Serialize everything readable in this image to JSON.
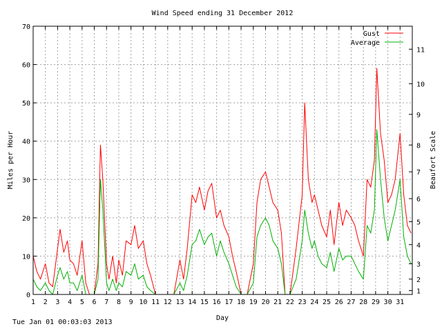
{
  "chart_data": {
    "type": "line",
    "title": "Wind Speed ending 31 December 2012",
    "xlabel": "Day",
    "ylabel": "Miles per Hour",
    "y2label": "Beaufort Scale",
    "xlim": [
      1,
      32
    ],
    "ylim": [
      0,
      70
    ],
    "x_ticks": [
      "1",
      "2",
      "3",
      "4",
      "5",
      "6",
      "7",
      "8",
      "9",
      "10",
      "11",
      "12",
      "13",
      "14",
      "15",
      "16",
      "17",
      "18",
      "19",
      "20",
      "21",
      "22",
      "23",
      "24",
      "25",
      "26",
      "27",
      "28",
      "29",
      "30",
      "31"
    ],
    "y_ticks": [
      0,
      10,
      20,
      30,
      40,
      50,
      60,
      70
    ],
    "y2_ticks": [
      {
        "label": "1",
        "mph": 1
      },
      {
        "label": "2",
        "mph": 4
      },
      {
        "label": "3",
        "mph": 8
      },
      {
        "label": "4",
        "mph": 13
      },
      {
        "label": "5",
        "mph": 19
      },
      {
        "label": "6",
        "mph": 25
      },
      {
        "label": "7",
        "mph": 32
      },
      {
        "label": "8",
        "mph": 39
      },
      {
        "label": "9",
        "mph": 47
      },
      {
        "label": "10",
        "mph": 55
      },
      {
        "label": "11",
        "mph": 64
      }
    ],
    "grid": true,
    "legend_position": "top-right",
    "series": [
      {
        "name": "Gust",
        "color": "#ff0000",
        "x": [
          1.0,
          1.3,
          1.6,
          2.0,
          2.3,
          2.6,
          3.0,
          3.2,
          3.5,
          3.8,
          4.0,
          4.3,
          4.6,
          5.0,
          5.3,
          5.6,
          6.0,
          6.3,
          6.5,
          6.7,
          7.0,
          7.2,
          7.5,
          7.8,
          8.0,
          8.3,
          8.6,
          9.0,
          9.3,
          9.6,
          10.0,
          10.3,
          10.6,
          11.0,
          11.5,
          12.0,
          12.5,
          13.0,
          13.3,
          13.6,
          14.0,
          14.3,
          14.6,
          15.0,
          15.3,
          15.6,
          16.0,
          16.3,
          16.6,
          17.0,
          17.3,
          17.6,
          18.0,
          18.5,
          19.0,
          19.3,
          19.6,
          20.0,
          20.3,
          20.6,
          21.0,
          21.3,
          21.6,
          22.0,
          22.5,
          23.0,
          23.2,
          23.5,
          23.8,
          24.0,
          24.3,
          24.6,
          25.0,
          25.3,
          25.6,
          26.0,
          26.3,
          26.6,
          27.0,
          27.3,
          27.6,
          28.0,
          28.3,
          28.6,
          28.9,
          29.1,
          29.4,
          29.7,
          30.0,
          30.3,
          30.6,
          31.0,
          31.3,
          31.6,
          31.9
        ],
        "values": [
          10,
          6,
          4,
          8,
          3,
          2,
          12,
          17,
          11,
          14,
          9,
          8,
          5,
          14,
          3,
          0,
          0,
          8,
          39,
          30,
          8,
          4,
          10,
          3,
          9,
          5,
          14,
          13,
          18,
          12,
          14,
          8,
          5,
          0,
          0,
          0,
          0,
          9,
          4,
          12,
          26,
          24,
          28,
          22,
          27,
          29,
          20,
          22,
          18,
          15,
          10,
          6,
          0,
          0,
          8,
          24,
          30,
          32,
          28,
          24,
          22,
          16,
          0,
          0,
          12,
          26,
          50,
          30,
          24,
          26,
          22,
          18,
          15,
          22,
          13,
          24,
          18,
          22,
          20,
          18,
          14,
          10,
          30,
          28,
          35,
          59,
          42,
          35,
          24,
          26,
          30,
          42,
          26,
          18,
          16
        ]
      },
      {
        "name": "Average",
        "color": "#00b000",
        "x": [
          1.0,
          1.3,
          1.6,
          2.0,
          2.3,
          2.6,
          3.0,
          3.2,
          3.5,
          3.8,
          4.0,
          4.3,
          4.6,
          5.0,
          5.3,
          5.6,
          6.0,
          6.3,
          6.5,
          6.7,
          7.0,
          7.2,
          7.5,
          7.8,
          8.0,
          8.3,
          8.6,
          9.0,
          9.3,
          9.6,
          10.0,
          10.3,
          10.6,
          11.0,
          11.5,
          12.0,
          12.5,
          13.0,
          13.3,
          13.6,
          14.0,
          14.3,
          14.6,
          15.0,
          15.3,
          15.6,
          16.0,
          16.3,
          16.6,
          17.0,
          17.3,
          17.6,
          18.0,
          18.5,
          19.0,
          19.3,
          19.6,
          20.0,
          20.3,
          20.6,
          21.0,
          21.3,
          21.6,
          22.0,
          22.5,
          23.0,
          23.2,
          23.5,
          23.8,
          24.0,
          24.3,
          24.6,
          25.0,
          25.3,
          25.6,
          26.0,
          26.3,
          26.6,
          27.0,
          27.3,
          27.6,
          28.0,
          28.3,
          28.6,
          28.9,
          29.1,
          29.4,
          29.7,
          30.0,
          30.3,
          30.6,
          31.0,
          31.3,
          31.6,
          31.9
        ],
        "values": [
          4,
          2,
          1,
          3,
          1,
          0,
          5,
          7,
          4,
          6,
          3,
          3,
          1,
          5,
          0,
          0,
          0,
          4,
          30,
          22,
          3,
          1,
          4,
          1,
          3,
          2,
          6,
          5,
          8,
          4,
          5,
          2,
          1,
          0,
          0,
          0,
          0,
          3,
          1,
          5,
          13,
          14,
          17,
          13,
          15,
          16,
          10,
          14,
          11,
          8,
          5,
          2,
          0,
          0,
          3,
          15,
          18,
          20,
          18,
          14,
          12,
          8,
          0,
          0,
          4,
          14,
          22,
          16,
          12,
          14,
          10,
          8,
          7,
          11,
          6,
          12,
          9,
          10,
          10,
          8,
          6,
          4,
          18,
          16,
          22,
          43,
          30,
          20,
          14,
          18,
          22,
          30,
          15,
          10,
          8
        ]
      }
    ]
  },
  "footer": {
    "timestamp": "Tue Jan 01 00:03:03 2013"
  }
}
